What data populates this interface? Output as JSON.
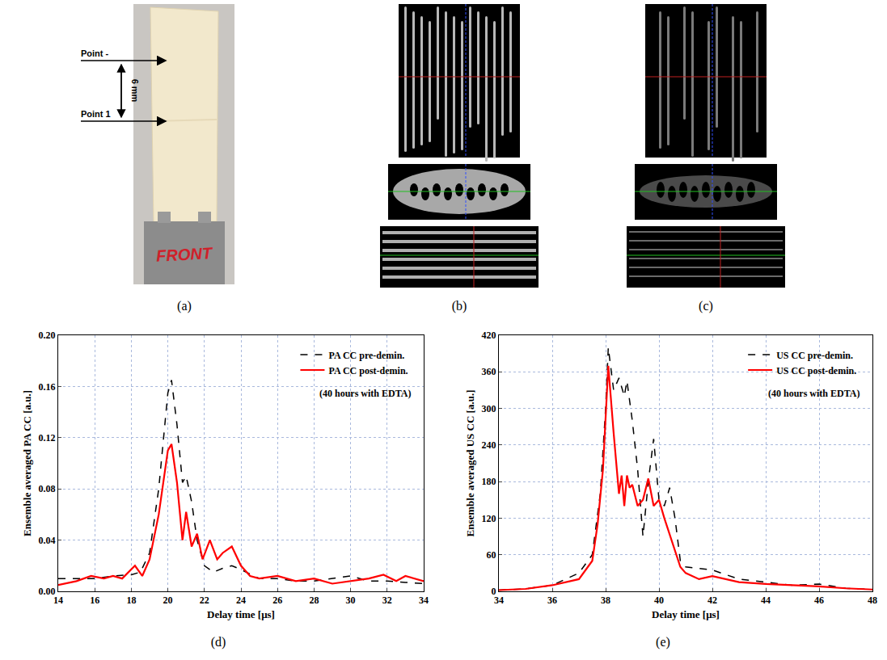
{
  "photo_a": {
    "label": "(a)",
    "arrows": [
      {
        "text": "Point -"
      },
      {
        "text": "Point 1"
      }
    ],
    "distance": "6 mm",
    "base_text": "FRONT"
  },
  "ct_b": {
    "label": "(b)"
  },
  "ct_c": {
    "label": "(c)"
  },
  "chart_data": [
    {
      "type": "line",
      "panel_label": "(d)",
      "x_label": "Delay time [μs]",
      "y_label": "Ensemble averaged PA CC [a.u.]",
      "xlim": [
        14,
        34
      ],
      "xticks": [
        14,
        16,
        18,
        20,
        22,
        24,
        26,
        28,
        30,
        32,
        34
      ],
      "ylim": [
        0,
        0.2
      ],
      "yticks": [
        {
          "value": 0,
          "label": "0.00"
        },
        {
          "value": 0.04,
          "label": "0.04"
        },
        {
          "value": 0.08,
          "label": "0.08"
        },
        {
          "value": 0.12,
          "label": "0.12"
        },
        {
          "value": 0.16,
          "label": "0.16"
        },
        {
          "value": 0.2,
          "label": "0.20"
        }
      ],
      "grid": true,
      "legend": "upper right",
      "annotation": "(40 hours with EDTA)",
      "series": [
        {
          "name": "PA CC pre-demin.",
          "color": "#000000",
          "line_style": "dash",
          "x": [
            14,
            15,
            16,
            17,
            18,
            18.5,
            19,
            19.5,
            20,
            20.2,
            20.5,
            20.8,
            21,
            21.3,
            21.6,
            22,
            22.5,
            23,
            23.5,
            24,
            25,
            26,
            27,
            28,
            29,
            30,
            31,
            32,
            33,
            34
          ],
          "values": [
            0.01,
            0.01,
            0.01,
            0.012,
            0.013,
            0.015,
            0.03,
            0.08,
            0.155,
            0.165,
            0.13,
            0.085,
            0.09,
            0.07,
            0.04,
            0.02,
            0.015,
            0.018,
            0.02,
            0.017,
            0.01,
            0.01,
            0.008,
            0.008,
            0.01,
            0.012,
            0.008,
            0.008,
            0.007,
            0.006
          ]
        },
        {
          "name": "PA CC post-demin.",
          "color": "#ff0000",
          "line_style": "solid",
          "x": [
            14,
            15,
            15.8,
            16.5,
            17,
            17.5,
            18.2,
            18.6,
            19,
            19.5,
            20,
            20.2,
            20.5,
            20.8,
            21,
            21.3,
            21.6,
            21.9,
            22.3,
            22.7,
            23,
            23.5,
            24,
            24.5,
            25,
            26,
            27,
            28,
            29,
            30,
            31,
            31.8,
            32.5,
            33,
            34
          ],
          "values": [
            0.005,
            0.008,
            0.012,
            0.01,
            0.012,
            0.01,
            0.02,
            0.012,
            0.025,
            0.06,
            0.11,
            0.115,
            0.085,
            0.04,
            0.062,
            0.035,
            0.045,
            0.025,
            0.04,
            0.025,
            0.03,
            0.035,
            0.02,
            0.012,
            0.01,
            0.012,
            0.008,
            0.01,
            0.006,
            0.008,
            0.01,
            0.013,
            0.008,
            0.012,
            0.008
          ]
        }
      ]
    },
    {
      "type": "line",
      "panel_label": "(e)",
      "x_label": "Delay time [μs]",
      "y_label": "Ensemble averaged US CC [a.u.]",
      "xlim": [
        34,
        48
      ],
      "xticks": [
        34,
        36,
        38,
        40,
        42,
        44,
        46,
        48
      ],
      "ylim": [
        0,
        420
      ],
      "yticks": [
        0,
        60,
        120,
        180,
        240,
        300,
        360,
        420
      ],
      "grid": true,
      "legend": "upper right",
      "annotation": "(40 hours with EDTA)",
      "series": [
        {
          "name": "US CC pre-demin.",
          "color": "#000000",
          "line_style": "dash",
          "x": [
            34,
            35,
            36,
            37,
            37.5,
            37.8,
            38,
            38.1,
            38.3,
            38.5,
            38.7,
            38.8,
            39,
            39.2,
            39.4,
            39.6,
            39.8,
            40,
            40.2,
            40.4,
            40.6,
            40.8,
            41,
            42,
            43,
            44,
            45,
            46,
            47,
            48
          ],
          "values": [
            2,
            4,
            10,
            30,
            60,
            160,
            300,
            400,
            330,
            350,
            320,
            345,
            280,
            200,
            90,
            180,
            250,
            150,
            140,
            170,
            120,
            50,
            40,
            35,
            20,
            15,
            10,
            12,
            5,
            3
          ]
        },
        {
          "name": "US CC post-demin.",
          "color": "#ff0000",
          "line_style": "solid",
          "x": [
            34,
            35,
            36,
            37,
            37.5,
            37.7,
            37.9,
            38.1,
            38.3,
            38.5,
            38.6,
            38.7,
            38.8,
            38.9,
            39,
            39.2,
            39.4,
            39.6,
            39.8,
            40,
            40.2,
            40.5,
            40.8,
            41,
            41.5,
            42,
            43,
            44,
            45,
            46,
            47,
            48
          ],
          "values": [
            2,
            4,
            10,
            20,
            50,
            110,
            200,
            370,
            260,
            160,
            190,
            140,
            190,
            170,
            175,
            140,
            150,
            185,
            140,
            150,
            120,
            80,
            40,
            30,
            20,
            25,
            15,
            12,
            10,
            8,
            5,
            3
          ]
        }
      ]
    }
  ]
}
